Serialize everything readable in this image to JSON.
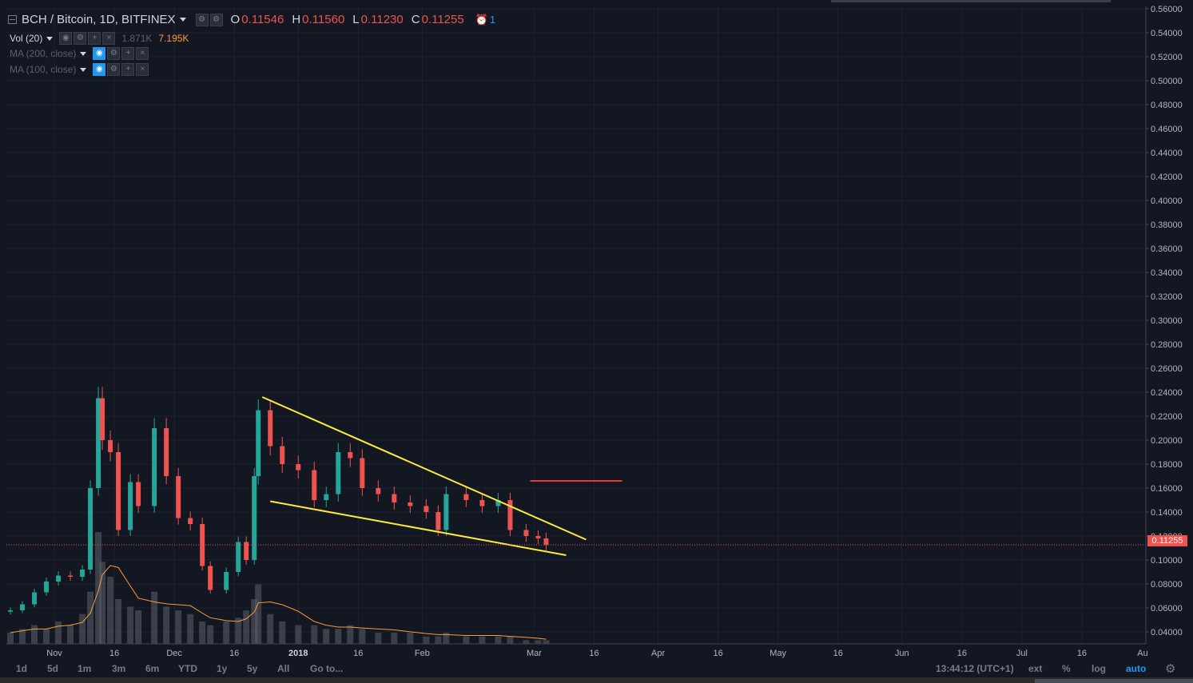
{
  "header": {
    "symbol": "BCH / Bitcoin, 1D, BITFINEX",
    "o_label": "O",
    "o_value": "0.11546",
    "h_label": "H",
    "h_value": "0.11560",
    "l_label": "L",
    "l_value": "0.11230",
    "c_label": "C",
    "c_value": "0.11255",
    "alert_count": "1"
  },
  "indicators": {
    "vol": {
      "name": "Vol (20)",
      "value1": "1.871K",
      "value2": "7.195K"
    },
    "ma200": {
      "name": "MA (200, close)"
    },
    "ma100": {
      "name": "MA (100, close)"
    }
  },
  "price_axis": {
    "ticks": [
      "0.56000",
      "0.54000",
      "0.52000",
      "0.50000",
      "0.48000",
      "0.46000",
      "0.44000",
      "0.42000",
      "0.40000",
      "0.38000",
      "0.36000",
      "0.34000",
      "0.32000",
      "0.30000",
      "0.28000",
      "0.26000",
      "0.24000",
      "0.22000",
      "0.20000",
      "0.18000",
      "0.16000",
      "0.14000",
      "0.12000",
      "0.10000",
      "0.08000",
      "0.06000",
      "0.04000"
    ],
    "last_price": "0.11255"
  },
  "time_axis": {
    "labels": [
      "Nov",
      "16",
      "Dec",
      "16",
      "2018",
      "16",
      "Feb",
      "Mar",
      "16",
      "Apr",
      "16",
      "May",
      "16",
      "Jun",
      "16",
      "Jul",
      "16",
      "Au"
    ]
  },
  "bottom_bar": {
    "timeframes": [
      "1d",
      "5d",
      "1m",
      "3m",
      "6m",
      "YTD",
      "1y",
      "5y",
      "All",
      "Go to..."
    ],
    "clock": "13:44:12 (UTC+1)",
    "ext": "ext",
    "percent": "%",
    "log": "log",
    "auto": "auto"
  },
  "colors": {
    "background": "#131722",
    "up": "#26a69a",
    "down": "#ef5350",
    "trendline": "#ffeb3b",
    "resistance": "#e53935",
    "volume": "#5d606b",
    "volume_ma": "#ff9a3c"
  },
  "chart_data": {
    "type": "candlestick",
    "title": "BCH / Bitcoin, 1D, BITFINEX",
    "ylim": [
      0.03,
      0.562
    ],
    "x_range": [
      "2017-10-20",
      "2018-08-01"
    ],
    "series": [
      {
        "name": "BCH / Bitcoin",
        "kind": "ohlc",
        "points": [
          {
            "x": "2017-10-21",
            "c": 0.058
          },
          {
            "x": "2017-10-24",
            "c": 0.063
          },
          {
            "x": "2017-10-27",
            "c": 0.073
          },
          {
            "x": "2017-10-30",
            "c": 0.082
          },
          {
            "x": "2017-11-02",
            "c": 0.087
          },
          {
            "x": "2017-11-05",
            "c": 0.086
          },
          {
            "x": "2017-11-08",
            "c": 0.092
          },
          {
            "x": "2017-11-10",
            "c": 0.16
          },
          {
            "x": "2017-11-12",
            "c": 0.235
          },
          {
            "x": "2017-11-13",
            "c": 0.2
          },
          {
            "x": "2017-11-15",
            "c": 0.19
          },
          {
            "x": "2017-11-17",
            "c": 0.125
          },
          {
            "x": "2017-11-20",
            "c": 0.165
          },
          {
            "x": "2017-11-22",
            "c": 0.145
          },
          {
            "x": "2017-11-26",
            "c": 0.21
          },
          {
            "x": "2017-11-29",
            "c": 0.17
          },
          {
            "x": "2017-12-02",
            "c": 0.135
          },
          {
            "x": "2017-12-05",
            "c": 0.13
          },
          {
            "x": "2017-12-08",
            "c": 0.095
          },
          {
            "x": "2017-12-10",
            "c": 0.075
          },
          {
            "x": "2017-12-14",
            "c": 0.09
          },
          {
            "x": "2017-12-17",
            "c": 0.115
          },
          {
            "x": "2017-12-19",
            "c": 0.1
          },
          {
            "x": "2017-12-21",
            "c": 0.17
          },
          {
            "x": "2017-12-22",
            "c": 0.225
          },
          {
            "x": "2017-12-25",
            "c": 0.195
          },
          {
            "x": "2017-12-28",
            "c": 0.18
          },
          {
            "x": "2018-01-01",
            "c": 0.175
          },
          {
            "x": "2018-01-05",
            "c": 0.15
          },
          {
            "x": "2018-01-08",
            "c": 0.155
          },
          {
            "x": "2018-01-11",
            "c": 0.19
          },
          {
            "x": "2018-01-14",
            "c": 0.185
          },
          {
            "x": "2018-01-17",
            "c": 0.16
          },
          {
            "x": "2018-01-21",
            "c": 0.155
          },
          {
            "x": "2018-01-25",
            "c": 0.148
          },
          {
            "x": "2018-01-29",
            "c": 0.145
          },
          {
            "x": "2018-02-02",
            "c": 0.14
          },
          {
            "x": "2018-02-05",
            "c": 0.125
          },
          {
            "x": "2018-02-07",
            "c": 0.155
          },
          {
            "x": "2018-02-12",
            "c": 0.15
          },
          {
            "x": "2018-02-16",
            "c": 0.145
          },
          {
            "x": "2018-02-20",
            "c": 0.15
          },
          {
            "x": "2018-02-23",
            "c": 0.125
          },
          {
            "x": "2018-02-27",
            "c": 0.12
          },
          {
            "x": "2018-03-02",
            "c": 0.118
          },
          {
            "x": "2018-03-04",
            "c": 0.11255
          }
        ]
      },
      {
        "name": "Vol (20)",
        "kind": "volume",
        "points_relative": [
          3,
          4,
          5,
          4,
          6,
          5,
          8,
          14,
          30,
          22,
          18,
          12,
          10,
          9,
          14,
          10,
          9,
          8,
          6,
          5,
          6,
          7,
          9,
          12,
          16,
          8,
          6,
          5,
          5,
          4,
          4,
          5,
          4,
          3,
          3,
          3,
          2,
          2,
          3,
          2,
          2,
          2,
          2,
          1,
          1,
          1
        ]
      }
    ],
    "annotations": [
      {
        "type": "trendline",
        "color": "#ffeb3b",
        "from": {
          "x": "2017-12-23",
          "y": 0.236
        },
        "to": {
          "x": "2018-03-14",
          "y": 0.117
        }
      },
      {
        "type": "trendline",
        "color": "#ffeb3b",
        "from": {
          "x": "2017-12-25",
          "y": 0.149
        },
        "to": {
          "x": "2018-03-09",
          "y": 0.104
        }
      },
      {
        "type": "hline",
        "color": "#e53935",
        "from": {
          "x": "2018-02-28",
          "y": 0.166
        },
        "to": {
          "x": "2018-03-23",
          "y": 0.166
        }
      },
      {
        "type": "hline",
        "color": "#ef5350",
        "style": "dotted",
        "y": 0.11255
      }
    ]
  }
}
